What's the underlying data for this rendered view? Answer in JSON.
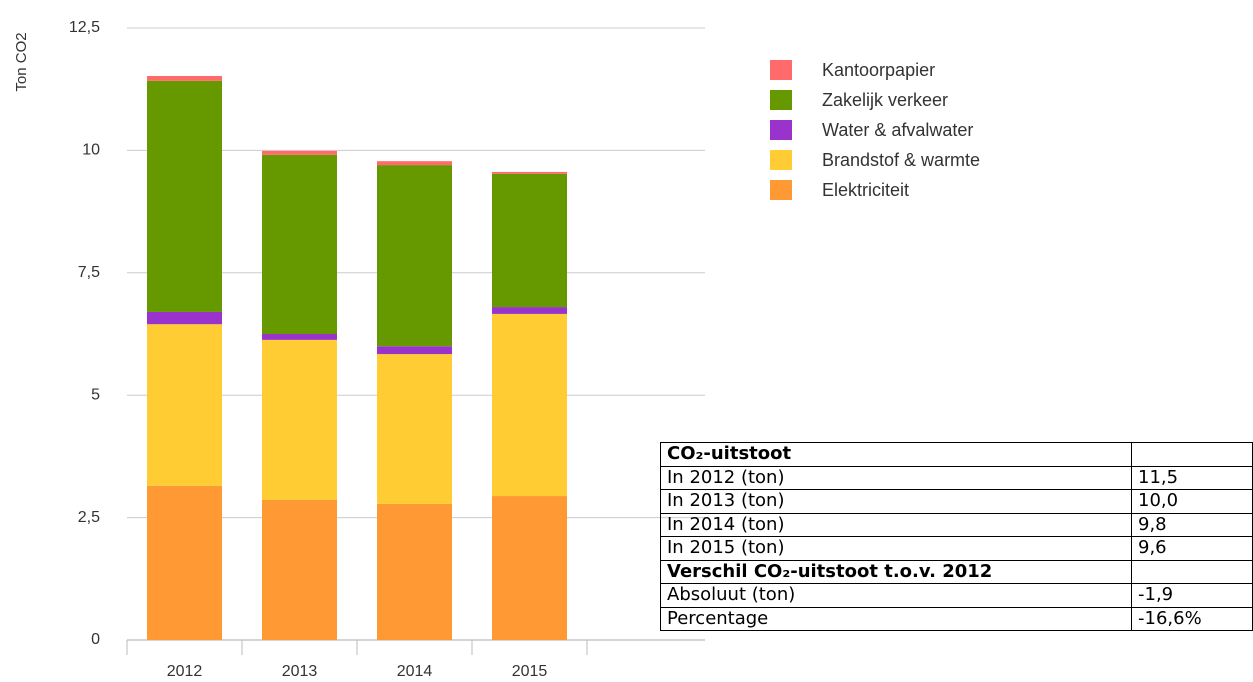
{
  "chart_data": {
    "type": "stacked_bar",
    "ylabel": "Ton CO2",
    "categories": [
      "2012",
      "2013",
      "2014",
      "2015"
    ],
    "series": [
      {
        "name": "Elektriciteit",
        "color": "#ff9933",
        "values": [
          3.15,
          2.86,
          2.78,
          2.94
        ]
      },
      {
        "name": "Brandstof & warmte",
        "color": "#ffcc33",
        "values": [
          3.3,
          3.27,
          3.06,
          3.72
        ]
      },
      {
        "name": "Water & afvalwater",
        "color": "#9933cc",
        "values": [
          0.25,
          0.12,
          0.16,
          0.14
        ]
      },
      {
        "name": "Zakelijk verkeer",
        "color": "#669900",
        "values": [
          4.72,
          3.66,
          3.7,
          2.72
        ]
      },
      {
        "name": "Kantoorpapier",
        "color": "#ff6b6b",
        "values": [
          0.1,
          0.08,
          0.08,
          0.04
        ]
      }
    ],
    "ylim": [
      0,
      12.5
    ],
    "yticks": [
      0,
      {
        "value": 2.5,
        "label": "2,5"
      },
      5,
      {
        "value": 7.5,
        "label": "7,5"
      },
      10,
      {
        "value": 12.5,
        "label": "12,5"
      }
    ],
    "grid": true
  },
  "table": {
    "rows": [
      [
        "CO₂-uitstoot"
      ],
      [
        "In 2012 (ton)",
        "11,5"
      ],
      [
        "In 2013 (ton)",
        "10,0"
      ],
      [
        "In 2014 (ton)",
        "9,8"
      ],
      [
        "In 2015 (ton)",
        "9,6"
      ],
      [
        "Verschil CO₂-uitstoot t.o.v. 2012"
      ],
      [
        "Absoluut (ton)",
        "-1,9"
      ],
      [
        "Percentage",
        "-16,6%"
      ]
    ]
  }
}
